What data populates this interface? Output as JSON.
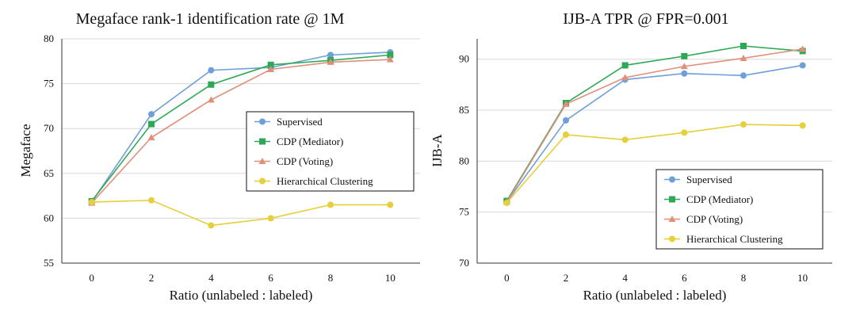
{
  "chart_data": [
    {
      "type": "line",
      "title": "Megaface rank-1 identification rate @ 1M",
      "xlabel": "Ratio (unlabeled : labeled)",
      "ylabel": "Megaface",
      "x": [
        0,
        2,
        4,
        6,
        8,
        10
      ],
      "xlim": [
        -1,
        11
      ],
      "ylim": [
        55,
        80
      ],
      "yticks": [
        55,
        60,
        65,
        70,
        75,
        80
      ],
      "grid": true,
      "legend_position": "center-right",
      "series": [
        {
          "name": "Supervised",
          "color": "#6f9fd8",
          "marker": "circle",
          "values": [
            61.8,
            71.6,
            76.5,
            76.8,
            78.2,
            78.5
          ]
        },
        {
          "name": "CDP (Mediator)",
          "color": "#2ea855",
          "marker": "square",
          "values": [
            61.9,
            70.5,
            74.9,
            77.1,
            77.6,
            78.2
          ]
        },
        {
          "name": "CDP (Voting)",
          "color": "#e0907a",
          "marker": "triangle",
          "values": [
            61.7,
            69.0,
            73.2,
            76.6,
            77.4,
            77.7
          ]
        },
        {
          "name": "Hierarchical Clustering",
          "color": "#e6cf3a",
          "marker": "circle",
          "values": [
            61.8,
            62.0,
            59.2,
            60.0,
            61.5,
            61.5
          ]
        }
      ]
    },
    {
      "type": "line",
      "title": "IJB-A  TPR @ FPR=0.001",
      "xlabel": "Ratio (unlabeled : labeled)",
      "ylabel": "IJB-A",
      "x": [
        0,
        2,
        4,
        6,
        8,
        10
      ],
      "xlim": [
        -1,
        11
      ],
      "ylim": [
        70,
        92
      ],
      "yticks": [
        70,
        75,
        80,
        85,
        90
      ],
      "grid": true,
      "legend_position": "bottom-right",
      "series": [
        {
          "name": "Supervised",
          "color": "#6f9fd8",
          "marker": "circle",
          "values": [
            76.0,
            84.0,
            88.0,
            88.6,
            88.4,
            89.4
          ]
        },
        {
          "name": "CDP (Mediator)",
          "color": "#2ea855",
          "marker": "square",
          "values": [
            76.1,
            85.7,
            89.4,
            90.3,
            91.3,
            90.8
          ]
        },
        {
          "name": "CDP (Voting)",
          "color": "#e0907a",
          "marker": "triangle",
          "values": [
            76.0,
            85.6,
            88.2,
            89.3,
            90.1,
            91.0
          ]
        },
        {
          "name": "Hierarchical Clustering",
          "color": "#e6cf3a",
          "marker": "circle",
          "values": [
            75.9,
            82.6,
            82.1,
            82.8,
            83.6,
            83.5
          ]
        }
      ]
    }
  ]
}
